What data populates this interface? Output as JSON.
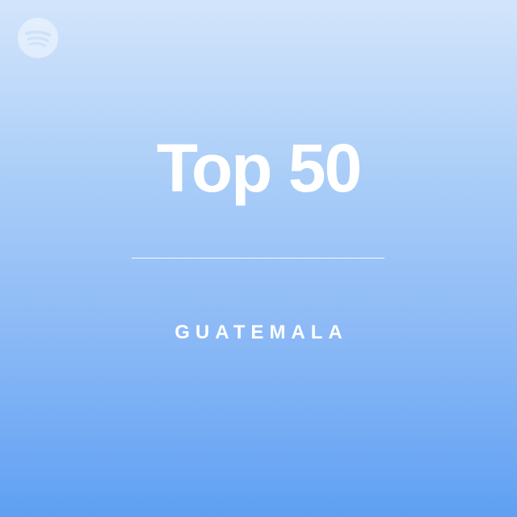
{
  "cover": {
    "title": "Top 50",
    "subtitle": "GUATEMALA",
    "logo_icon": "spotify-logo-icon",
    "colors": {
      "gradient_top": "#d3e5fb",
      "gradient_bottom": "#5fa0f3",
      "text": "#ffffff"
    }
  }
}
